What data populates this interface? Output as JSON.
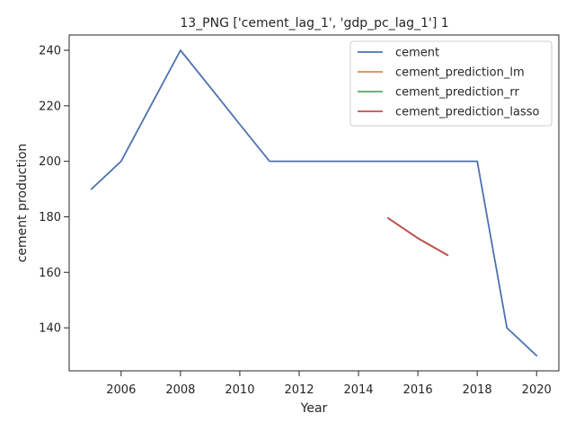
{
  "chart_data": {
    "type": "line",
    "title": "13_PNG ['cement_lag_1', 'gdp_pc_lag_1'] 1",
    "xlabel": "Year",
    "ylabel": "cement production",
    "xlim": [
      2004.25,
      2020.75
    ],
    "ylim": [
      124.5,
      245.5
    ],
    "xticks": [
      2006,
      2008,
      2010,
      2012,
      2014,
      2016,
      2018,
      2020
    ],
    "yticks": [
      140,
      160,
      180,
      200,
      220,
      240
    ],
    "grid": false,
    "legend_position": "top-right",
    "series": [
      {
        "name": "cement",
        "color": "#4c72b0",
        "x": [
          2005,
          2006,
          2007,
          2008,
          2009,
          2010,
          2011,
          2012,
          2013,
          2014,
          2015,
          2016,
          2017,
          2018,
          2019,
          2020
        ],
        "y": [
          190,
          200,
          220,
          240,
          226.7,
          213.3,
          200,
          200,
          200,
          200,
          200,
          200,
          200,
          200,
          140,
          130
        ]
      },
      {
        "name": "cement_prediction_lm",
        "color": "#dd8452",
        "x": [
          2015,
          2016,
          2017
        ],
        "y": [
          179.5,
          172.3,
          166.2
        ]
      },
      {
        "name": "cement_prediction_rr",
        "color": "#55a868",
        "x": [
          2015,
          2016,
          2017
        ],
        "y": [
          179.5,
          172.3,
          166.2
        ]
      },
      {
        "name": "cement_prediction_lasso",
        "color": "#c44e52",
        "x": [
          2015,
          2016,
          2017
        ],
        "y": [
          179.5,
          172.3,
          166.2
        ]
      }
    ]
  }
}
